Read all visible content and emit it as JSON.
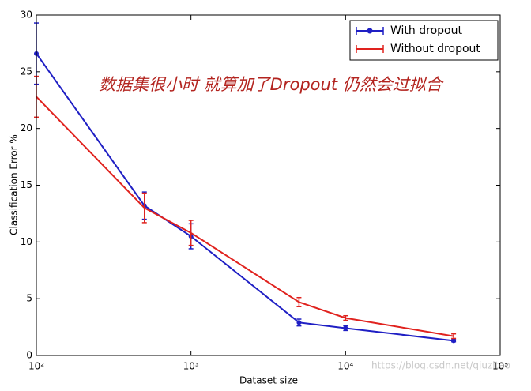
{
  "chart_data": {
    "type": "line",
    "x": [
      100,
      500,
      1000,
      5000,
      10000,
      50000
    ],
    "xlim": [
      100,
      100000
    ],
    "xscale": "log",
    "xticks": [
      {
        "value": 100,
        "label": "10²"
      },
      {
        "value": 1000,
        "label": "10³"
      },
      {
        "value": 10000,
        "label": "10⁴"
      },
      {
        "value": 100000,
        "label": "10⁵"
      }
    ],
    "ylim": [
      0,
      30
    ],
    "yticks": [
      0,
      5,
      10,
      15,
      20,
      25,
      30
    ],
    "xlabel": "Dataset size",
    "ylabel": "Classification Error %",
    "legend": "upper right",
    "series": [
      {
        "name": "With dropout",
        "color": "#1f1fc4",
        "marker": "circle",
        "values": [
          26.6,
          13.2,
          10.5,
          2.9,
          2.4,
          1.3
        ],
        "errors": [
          2.7,
          1.2,
          1.1,
          0.3,
          0.2,
          0.1
        ]
      },
      {
        "name": "Without dropout",
        "color": "#e0221e",
        "marker": "none",
        "values": [
          22.8,
          13.0,
          10.8,
          4.7,
          3.3,
          1.7
        ],
        "errors": [
          1.8,
          1.3,
          1.1,
          0.4,
          0.2,
          0.2
        ]
      }
    ],
    "annotation": "数据集很小时 就算加了Dropout 仍然会过拟合",
    "watermark": "https://blog.csdn.net/qiuzitao"
  }
}
